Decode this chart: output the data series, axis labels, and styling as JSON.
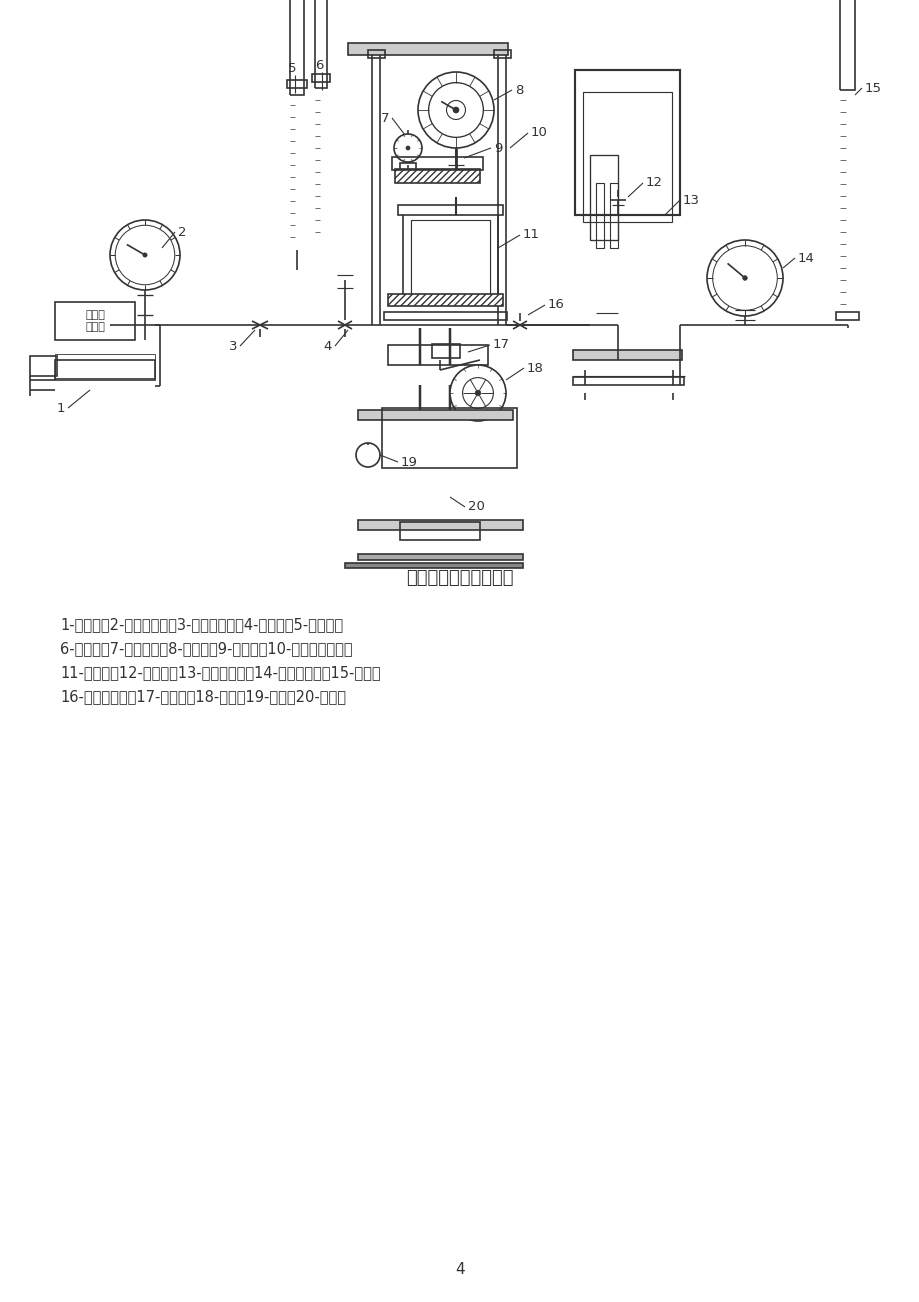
{
  "title": "应变控制式三轴剪切仪",
  "caption_line1": "1-调压筒；2-周围压力表；3-周围压力阀；4-排水阀；5-体变管；",
  "caption_line2": "6-排水管；7-变形量表；8-量力环；9-排气孔；10-轴向加压设备；",
  "caption_line3": "11-压力室；12-量管阀；13-零位指示器；14-孔隙压力表；15-量管；",
  "caption_line4": "16-孔隙压力阀；17-离合器；18-手轮；19-马达；20-变速箱",
  "page_number": "4",
  "bg_color": "#ffffff",
  "line_color": "#333333",
  "text_color": "#333333",
  "label_color": "#333333"
}
